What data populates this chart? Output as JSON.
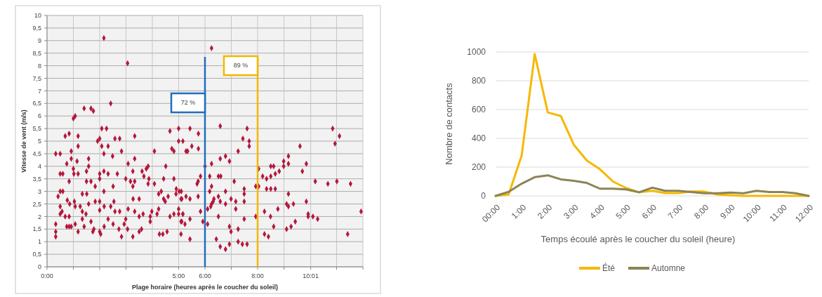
{
  "chart_data": [
    {
      "type": "scatter",
      "xlabel": "Plage horaire (heures après le coucher du soleil)",
      "ylabel": "Vitesse de vent (m/s)",
      "xlim": [
        0,
        12
      ],
      "xticks": [
        {
          "value": 0,
          "label": "0:00"
        },
        {
          "value": 1,
          "label": null
        },
        {
          "value": 2,
          "label": null
        },
        {
          "value": 3,
          "label": null
        },
        {
          "value": 4,
          "label": null
        },
        {
          "value": 5,
          "label": "5:00"
        },
        {
          "value": 6,
          "label": "6:00"
        },
        {
          "value": 7,
          "label": null
        },
        {
          "value": 8,
          "label": "8:00"
        },
        {
          "value": 9,
          "label": null
        },
        {
          "value": 10.0167,
          "label": "10:01"
        },
        {
          "value": 11,
          "label": null
        },
        {
          "value": 12,
          "label": null
        }
      ],
      "ylim": [
        0,
        10
      ],
      "yticks": [
        0,
        {
          "value": 0.5,
          "label": "0,5"
        },
        1,
        {
          "value": 1.5,
          "label": "1,5"
        },
        2,
        {
          "value": 2.5,
          "label": "2,5"
        },
        3,
        {
          "value": 3.5,
          "label": "3,5"
        },
        4,
        {
          "value": 4.5,
          "label": "4,5"
        },
        5,
        {
          "value": 5.5,
          "label": "5,5"
        },
        6,
        {
          "value": 6.5,
          "label": "6,5"
        },
        7,
        {
          "value": 7.5,
          "label": "7,5"
        },
        8,
        {
          "value": 8.5,
          "label": "8,5"
        },
        9,
        {
          "value": 9.5,
          "label": "9,5"
        },
        10
      ],
      "grid": true,
      "marker": "diamond",
      "ref_lines": [
        {
          "axis": "x",
          "value": 6,
          "color": "#1f6fbf"
        },
        {
          "axis": "x",
          "value": 8,
          "color": "#f2b800"
        }
      ],
      "annotations": [
        "72 %",
        "89 %"
      ],
      "series": [
        {
          "color": "#b5173a",
          "x": [
            0.33,
            0.33,
            0.33,
            0.33,
            0.5,
            0.42,
            0.5,
            0.5,
            0.6,
            0.5,
            0.5,
            0.57,
            0.6,
            0.69,
            0.75,
            0.84,
            0.75,
            0.84,
            0.84,
            0.69,
            0.77,
            0.86,
            0.92,
            0.92,
            0.84,
            1.0,
            1.07,
            1.0,
            1.02,
            0.92,
            1.04,
            1.07,
            1.14,
            1.18,
            1.18,
            1.07,
            1.18,
            1.26,
            1.18,
            1.34,
            1.34,
            1.34,
            1.41,
            1.41,
            1.5,
            1.5,
            1.51,
            1.48,
            1.58,
            1.58,
            1.58,
            1.67,
            1.76,
            1.67,
            1.67,
            1.74,
            1.78,
            1.83,
            1.83,
            1.92,
            2.0,
            2.0,
            2.0,
            2.0,
            2.0,
            2.0,
            2.04,
            2.08,
            2.08,
            2.16,
            2.16,
            2.16,
            2.16,
            2.17,
            2.17,
            2.26,
            2.32,
            2.32,
            2.32,
            2.42,
            2.42,
            2.49,
            2.51,
            2.54,
            2.58,
            2.58,
            2.51,
            2.67,
            2.73,
            2.76,
            2.76,
            2.83,
            2.83,
            2.93,
            2.99,
            2.99,
            3.06,
            3.08,
            3.08,
            3.06,
            3.17,
            3.26,
            3.26,
            3.26,
            3.27,
            3.33,
            3.33,
            3.33,
            3.33,
            3.5,
            3.5,
            3.5,
            3.59,
            3.61,
            3.65,
            3.68,
            3.77,
            3.84,
            3.84,
            3.87,
            3.92,
            3.92,
            3.98,
            4.08,
            4.08,
            4.18,
            4.24,
            4.24,
            4.27,
            4.34,
            4.4,
            4.43,
            4.43,
            4.49,
            4.51,
            4.56,
            4.6,
            4.67,
            4.67,
            4.74,
            4.82,
            4.82,
            4.82,
            4.91,
            4.9,
            5.0,
            5.0,
            5.0,
            5.0,
            5.09,
            5.09,
            5.09,
            5.16,
            5.16,
            5.24,
            5.28,
            6.25,
            5.43,
            5.75,
            5.5,
            5.34,
            5.75,
            6.58,
            7.6,
            7.44,
            7.68,
            7.68,
            7.26,
            6.58,
            6.78,
            6.93,
            6.25,
            6.0,
            5.83,
            5.74,
            5.7,
            6.18,
            6.51,
            6.6,
            6.25,
            6.18,
            5.02,
            5.1,
            5.12,
            5.28,
            5.43,
            5.74,
            6.34,
            6.31,
            6.25,
            6.22,
            6.58,
            6.51,
            6.78,
            6.78,
            6.99,
            7.11,
            7.17,
            7.17,
            7.49,
            7.49,
            7.49,
            7.93,
            8.04,
            8.04,
            5.83,
            5.16,
            5.12,
            5.43,
            5.92,
            6.1,
            6.1,
            6.51,
            6.43,
            6.58,
            6.78,
            6.93,
            6.93,
            6.99,
            7.26,
            7.26,
            7.42,
            7.6,
            7.49,
            7.93,
            5.43,
            8.26,
            8.41,
            8.26,
            8.49,
            8.61,
            8.77,
            8.19,
            8.34,
            8.5,
            8.67,
            8.82,
            8.5,
            8.61,
            8.99,
            8.99,
            9.17,
            9.17,
            8.34,
            8.5,
            8.67,
            9.17,
            9.1,
            9.17,
            9.36,
            9.1,
            9.27,
            9.43,
            9.61,
            9.7,
            9.85,
            9.85,
            9.92,
            9.92,
            10.1,
            10.28,
            10.19,
            10.67,
            10.85,
            10.94,
            11.11,
            11.01,
            11.53,
            11.42,
            11.93
          ],
          "values": [
            1.2,
            1.7,
            1.4,
            4.5,
            4.5,
            2.8,
            3.7,
            3.0,
            3.0,
            2.4,
            2.1,
            2.2,
            3.7,
            5.2,
            4.1,
            5.3,
            1.6,
            1.6,
            2.0,
            2.0,
            2.65,
            2.5,
            4.6,
            4.3,
            3.4,
            5.9,
            6.0,
            3.9,
            3.7,
            1.6,
            2.6,
            2.4,
            4.2,
            5.2,
            4.8,
            1.7,
            1.4,
            2.4,
            3.7,
            2.9,
            2.2,
            1.9,
            6.3,
            1.6,
            3.4,
            3.8,
            2.9,
            2.1,
            4.3,
            4.0,
            2.5,
            6.3,
            6.2,
            3.4,
            1.8,
            1.4,
            1.5,
            3.2,
            2.6,
            5.0,
            5.1,
            3.7,
            3.5,
            2.6,
            2.25,
            1.4,
            1.3,
            5.5,
            4.8,
            9.1,
            4.5,
            3.8,
            3.0,
            2.4,
            1.6,
            5.5,
            4.8,
            3.7,
            1.9,
            6.5,
            2.4,
            4.4,
            3.2,
            2.6,
            5.1,
            2.2,
            1.7,
            3.7,
            1.5,
            5.1,
            2.2,
            4.6,
            1.2,
            1.7,
            1.9,
            3.5,
            8.1,
            4.1,
            2.3,
            1.5,
            3.4,
            1.2,
            3.8,
            3.2,
            2.7,
            5.2,
            4.3,
            3.4,
            2.2,
            2.7,
            2.0,
            1.4,
            1.5,
            3.8,
            2.1,
            3.6,
            3.9,
            4.0,
            3.3,
            3.5,
            1.8,
            2.0,
            2.2,
            4.6,
            3.3,
            2.1,
            2.9,
            2.3,
            1.3,
            3.0,
            1.3,
            3.5,
            2.7,
            2.6,
            4.0,
            1.4,
            2.8,
            2.0,
            5.4,
            4.7,
            4.6,
            3.5,
            2.1,
            3.1,
            2.9,
            5.5,
            5.0,
            2.3,
            2.1,
            2.7,
            1.8,
            1.3,
            5.0,
            2.1,
            1.7,
            4.6,
            8.7,
            5.5,
            5.3,
            4.8,
            4.6,
            4.7,
            5.6,
            5.5,
            5.1,
            5.0,
            4.8,
            4.6,
            4.3,
            4.4,
            4.2,
            4.1,
            4.0,
            3.6,
            3.4,
            3.3,
            3.6,
            3.6,
            3.6,
            3.2,
            3.0,
            3.0,
            3.0,
            2.7,
            2.8,
            2.7,
            2.8,
            2.7,
            2.6,
            2.5,
            2.4,
            2.6,
            2.8,
            3.0,
            2.5,
            2.7,
            3.4,
            2.6,
            2.3,
            3.1,
            2.9,
            2.6,
            3.2,
            3.2,
            3.9,
            2.2,
            2.1,
            1.8,
            1.9,
            1.8,
            2.3,
            1.7,
            2.0,
            1.1,
            0.8,
            0.7,
            0.9,
            1.6,
            1.4,
            1.5,
            1.0,
            0.9,
            0.9,
            1.9,
            2.0,
            1.1,
            1.3,
            1.2,
            2.2,
            2.0,
            1.6,
            2.3,
            3.6,
            3.5,
            3.6,
            3.7,
            3.8,
            4.0,
            4.0,
            4.0,
            4.2,
            4.4,
            4.1,
            3.1,
            3.1,
            3.1,
            2.9,
            2.5,
            2.4,
            2.5,
            1.5,
            1.6,
            1.8,
            4.8,
            3.8,
            4.1,
            2.6,
            2.1,
            2.0,
            2.0,
            1.9,
            3.4,
            3.3,
            5.5,
            4.9,
            5.2,
            3.4,
            3.3,
            1.3,
            2.2
          ]
        }
      ]
    },
    {
      "type": "line",
      "xlabel": "Temps écoulé après le coucher du soleil (heure)",
      "ylabel": "Nombre de contacts",
      "categories": [
        "00:00",
        null,
        "1:00",
        null,
        "2:00",
        null,
        "3:00",
        null,
        "4:00",
        null,
        "5:00",
        null,
        "6:00",
        null,
        "7:00",
        null,
        "8:00",
        null,
        "9:00",
        null,
        "10:00",
        null,
        "11:00",
        null,
        "12:00"
      ],
      "ylim": [
        0,
        1000
      ],
      "yticks": [
        0,
        200,
        400,
        600,
        800,
        1000
      ],
      "grid": "y",
      "legend": "bottom",
      "series": [
        {
          "name": "Été",
          "color": "#f5b800",
          "values": [
            0,
            10,
            280,
            985,
            580,
            555,
            355,
            245,
            185,
            100,
            55,
            25,
            35,
            20,
            20,
            30,
            30,
            10,
            5,
            0,
            0,
            0,
            0,
            0,
            0
          ]
        },
        {
          "name": "Automne",
          "color": "#8b8455",
          "values": [
            0,
            28,
            85,
            130,
            143,
            115,
            105,
            90,
            50,
            50,
            45,
            25,
            57,
            35,
            35,
            27,
            18,
            18,
            23,
            18,
            35,
            27,
            27,
            18,
            0
          ]
        }
      ]
    }
  ]
}
